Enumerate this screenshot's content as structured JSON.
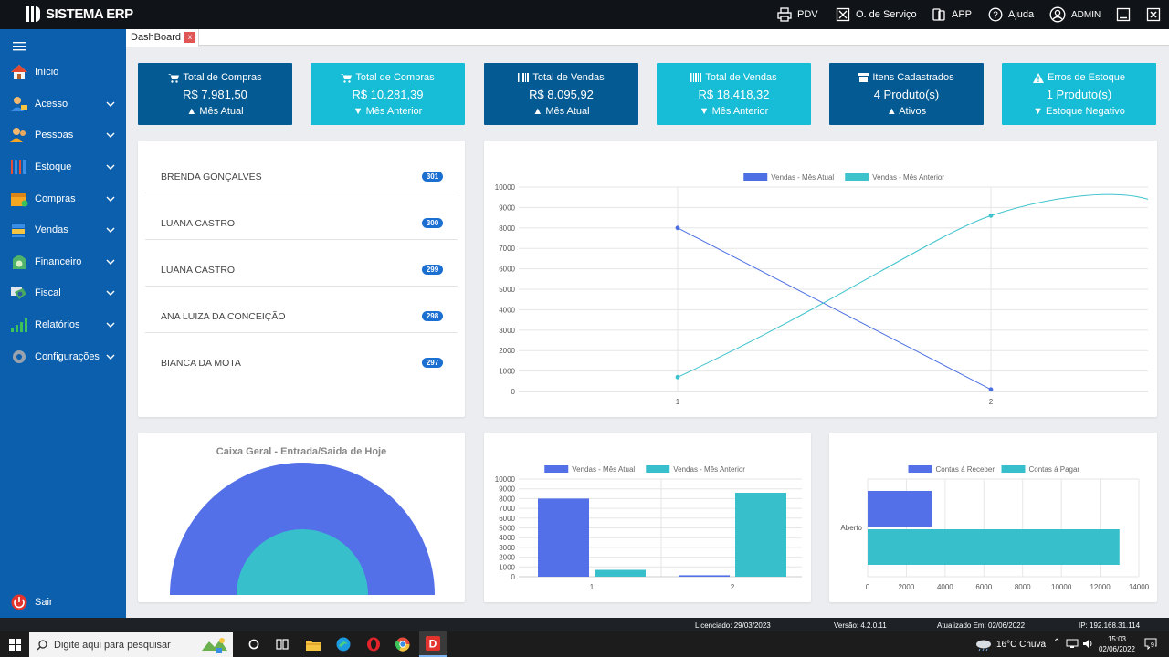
{
  "app": {
    "logo": "SISTEMA ERP"
  },
  "topnav": [
    {
      "label": "PDV",
      "icon": "printer-icon"
    },
    {
      "label": "O. de Serviço",
      "icon": "service-order-icon"
    },
    {
      "label": "APP",
      "icon": "mobile-app-icon"
    },
    {
      "label": "Ajuda",
      "icon": "help-icon"
    },
    {
      "label": "ADMIN",
      "icon": "user-icon"
    }
  ],
  "sidebar": {
    "items": [
      {
        "label": "Início",
        "icon": "home-icon"
      },
      {
        "label": "Acesso",
        "icon": "users-access-icon"
      },
      {
        "label": "Pessoas",
        "icon": "people-icon"
      },
      {
        "label": "Estoque",
        "icon": "stock-icon"
      },
      {
        "label": "Compras",
        "icon": "purchases-icon"
      },
      {
        "label": "Vendas",
        "icon": "sales-icon"
      },
      {
        "label": "Financeiro",
        "icon": "finance-icon"
      },
      {
        "label": "Fiscal",
        "icon": "fiscal-icon"
      },
      {
        "label": "Relatórios",
        "icon": "reports-icon"
      },
      {
        "label": "Configurações",
        "icon": "settings-icon"
      }
    ],
    "logout": "Sair"
  },
  "tab": {
    "label": "DashBoard",
    "close": "x"
  },
  "stats": [
    {
      "title": "Total de Compras",
      "value": "R$ 7.981,50",
      "footer": "Mês Atual",
      "icon": "cart-icon",
      "arrow": "up",
      "color": "#045a92"
    },
    {
      "title": "Total de Compras",
      "value": "R$ 10.281,39",
      "footer": "Mês Anterior",
      "icon": "cart-icon",
      "arrow": "down",
      "color": "#17bcd6"
    },
    {
      "title": "Total de Vendas",
      "value": "R$ 8.095,92",
      "footer": "Mês Atual",
      "icon": "barcode-icon",
      "arrow": "up",
      "color": "#045a92"
    },
    {
      "title": "Total de Vendas",
      "value": "R$ 18.418,32",
      "footer": "Mês Anterior",
      "icon": "barcode-icon",
      "arrow": "down",
      "color": "#17bcd6"
    },
    {
      "title": "Itens Cadastrados",
      "value": "4 Produto(s)",
      "footer": "Ativos",
      "icon": "archive-icon",
      "arrow": "up",
      "color": "#045a92"
    },
    {
      "title": "Erros de Estoque",
      "value": "1 Produto(s)",
      "footer": "Estoque Negativo",
      "icon": "warning-icon",
      "arrow": "down",
      "color": "#17bcd6"
    }
  ],
  "clients": [
    {
      "name": "BRENDA GONÇALVES",
      "badge": "301"
    },
    {
      "name": "LUANA CASTRO",
      "badge": "300"
    },
    {
      "name": "LUANA CASTRO",
      "badge": "299"
    },
    {
      "name": "ANA LUIZA DA CONCEIÇÃO",
      "badge": "298"
    },
    {
      "name": "BIANCA DA MOTA",
      "badge": "297"
    }
  ],
  "chart_data": [
    {
      "type": "line",
      "x": [
        "1",
        "2"
      ],
      "series": [
        {
          "name": "Vendas - Mês Atual",
          "values": [
            8000,
            100
          ],
          "color": "#4c6fe3"
        },
        {
          "name": "Vendas - Mês Anterior",
          "values": [
            700,
            8600
          ],
          "color": "#3ec3cd"
        }
      ],
      "ylim": [
        0,
        10000
      ],
      "yticks": [
        "10000",
        "9000",
        "8000",
        "7000",
        "6000",
        "5000",
        "4000",
        "3000",
        "2000",
        "1000",
        "0"
      ],
      "legend": "top"
    },
    {
      "type": "pie",
      "title": "Caixa Geral - Entrada/Saida de Hoje",
      "layers": [
        {
          "name": "outer",
          "color": "#5470e8"
        },
        {
          "name": "inner",
          "color": "#37c0cc"
        }
      ]
    },
    {
      "type": "bar",
      "categories": [
        "1",
        "2"
      ],
      "series": [
        {
          "name": "Vendas - Mês Atual",
          "values": [
            8000,
            150
          ],
          "color": "#5470e8"
        },
        {
          "name": "Vendas - Mês Anterior",
          "values": [
            700,
            8600
          ],
          "color": "#37c0cc"
        }
      ],
      "ylim": [
        0,
        10000
      ],
      "yticks": [
        "10000",
        "9000",
        "8000",
        "7000",
        "6000",
        "5000",
        "4000",
        "3000",
        "2000",
        "1000",
        "0"
      ],
      "legend": "top"
    },
    {
      "type": "bar",
      "orientation": "horizontal",
      "categories": [
        "Aberto"
      ],
      "series": [
        {
          "name": "Contas á Receber",
          "values": [
            3300
          ],
          "color": "#5470e8"
        },
        {
          "name": "Contas á Pagar",
          "values": [
            13000
          ],
          "color": "#37c0cc"
        }
      ],
      "xlim": [
        0,
        14000
      ],
      "xticks": [
        "0",
        "2000",
        "4000",
        "6000",
        "8000",
        "10000",
        "12000",
        "14000"
      ],
      "legend": "top"
    }
  ],
  "statusbar": {
    "licensed": "Licenciado: 29/03/2023",
    "version": "Versão: 4.2.0.11",
    "updated": "Atualizado Em: 02/06/2022",
    "ip": "IP: 192.168.31.114"
  },
  "taskbar": {
    "search_placeholder": "Digite aqui para pesquisar",
    "weather": "16°C  Chuva",
    "time": "15:03",
    "date": "02/06/2022",
    "notifications": "9"
  }
}
